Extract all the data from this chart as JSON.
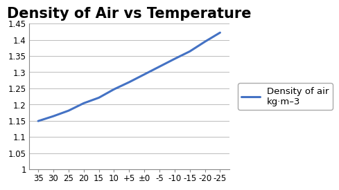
{
  "title": "Density of Air vs Temperature",
  "x_values": [
    35,
    30,
    25,
    20,
    15,
    10,
    5,
    0,
    -5,
    -10,
    -15,
    -20,
    -25
  ],
  "x_labels": [
    "35",
    "30",
    "25",
    "20",
    "15",
    "10",
    "+5",
    "±0",
    "-5",
    "-10",
    "-15",
    "-20",
    "-25"
  ],
  "y_values": [
    1.149,
    1.164,
    1.181,
    1.204,
    1.221,
    1.247,
    1.269,
    1.293,
    1.317,
    1.341,
    1.364,
    1.394,
    1.422
  ],
  "line_color": "#4472C4",
  "line_width": 2.2,
  "ylim": [
    1.0,
    1.45
  ],
  "ytick_labels": [
    "1",
    "1.05",
    "1.1",
    "1.15",
    "1.2",
    "1.25",
    "1.3",
    "1.35",
    "1.4",
    "1.45"
  ],
  "ytick_values": [
    1.0,
    1.05,
    1.1,
    1.15,
    1.2,
    1.25,
    1.3,
    1.35,
    1.4,
    1.45
  ],
  "legend_label": "Density of air\nkg·m–3",
  "background_color": "#ffffff",
  "plot_bg_color": "#ffffff",
  "title_fontsize": 15,
  "tick_fontsize": 8.5,
  "legend_fontsize": 9.5,
  "grid_color": "#bbbbbb",
  "spine_color": "#888888"
}
